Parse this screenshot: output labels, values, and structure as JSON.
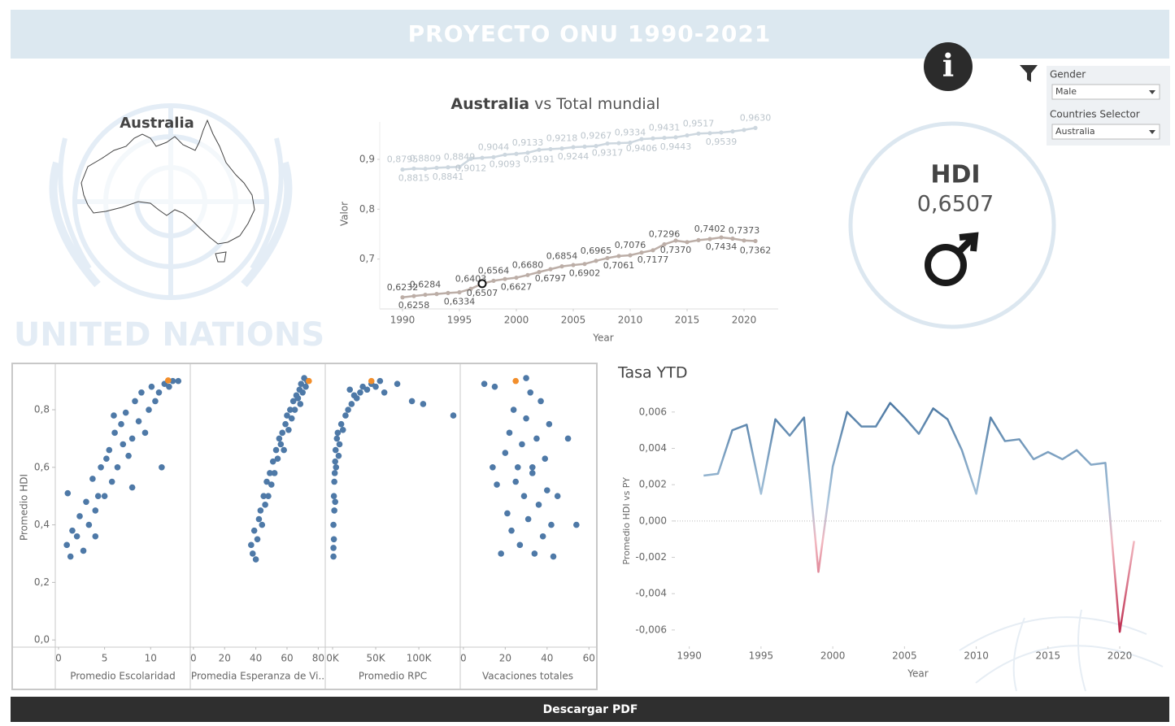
{
  "header": {
    "title": "PROYECTO ONU 1990-2021"
  },
  "map": {
    "label": "Australia",
    "watermark": "UNITED NATIONS"
  },
  "filters": [
    {
      "label": "Gender",
      "value": "Male"
    },
    {
      "label": "Countries Selector",
      "value": "Australia"
    }
  ],
  "kpi": {
    "label": "HDI",
    "value": "0,6507"
  },
  "footer": {
    "button": "Descargar PDF"
  },
  "chart_data": [
    {
      "type": "line",
      "title_bold": "Australia",
      "title": "vs Total mundial",
      "xlabel": "Year",
      "ylabel": "Valor",
      "x": [
        1990,
        1991,
        1992,
        1993,
        1994,
        1995,
        1996,
        1997,
        1998,
        1999,
        2000,
        2001,
        2002,
        2003,
        2004,
        2005,
        2006,
        2007,
        2008,
        2009,
        2010,
        2011,
        2012,
        2013,
        2014,
        2015,
        2016,
        2017,
        2018,
        2019,
        2020,
        2021
      ],
      "xlim": [
        1988,
        2023
      ],
      "xticks": [
        1990,
        1995,
        2000,
        2005,
        2010,
        2015,
        2020
      ],
      "ylim": [
        0.6,
        0.975
      ],
      "yticks": [
        {
          "value": 0.7,
          "label": "0,7"
        },
        {
          "value": 0.8,
          "label": "0,8"
        },
        {
          "value": 0.9,
          "label": "0,9"
        }
      ],
      "series": [
        {
          "color": "#cdd7df",
          "label_color": "#bcc5cc",
          "values": [
            0.8795,
            0.8815,
            0.8809,
            0.883,
            0.8841,
            0.8849,
            0.9012,
            0.903,
            0.9044,
            0.9093,
            0.911,
            0.9133,
            0.9191,
            0.9205,
            0.9218,
            0.9244,
            0.9255,
            0.9267,
            0.9317,
            0.9325,
            0.9334,
            0.9406,
            0.942,
            0.9431,
            0.9443,
            0.948,
            0.9517,
            0.9525,
            0.9539,
            0.956,
            0.959,
            0.963
          ],
          "value_labels": [
            "0,8795",
            "0,8815",
            "0,8809",
            null,
            "0,8841",
            "0,8849",
            "0,9012",
            null,
            "0,9044",
            "0,9093",
            null,
            "0,9133",
            "0,9191",
            null,
            "0,9218",
            "0,9244",
            null,
            "0,9267",
            "0,9317",
            null,
            "0,9334",
            "0,9406",
            null,
            "0,9431",
            "0,9443",
            null,
            "0,9517",
            null,
            "0,9539",
            null,
            null,
            "0,9630"
          ]
        },
        {
          "color": "#bcaea7",
          "label_color": "#555555",
          "highlight": 7,
          "values": [
            0.6232,
            0.6258,
            0.6284,
            0.63,
            0.632,
            0.6334,
            0.6403,
            0.6507,
            0.6564,
            0.66,
            0.6627,
            0.668,
            0.674,
            0.6797,
            0.6854,
            0.688,
            0.6902,
            0.6965,
            0.702,
            0.7061,
            0.7076,
            0.713,
            0.7177,
            0.7296,
            0.737,
            0.734,
            0.738,
            0.7402,
            0.7434,
            0.741,
            0.7373,
            0.7362
          ],
          "value_labels": [
            "0,6232",
            "0,6258",
            "0,6284",
            null,
            null,
            "0,6334",
            "0,6403",
            "0,6507",
            "0,6564",
            null,
            "0,6627",
            "0,6680",
            null,
            "0,6797",
            "0,6854",
            null,
            "0,6902",
            "0,6965",
            null,
            "0,7061",
            "0,7076",
            null,
            "0,7177",
            "0,7296",
            "0,7370",
            null,
            null,
            "0,7402",
            "0,7434",
            null,
            "0,7373",
            "0,7362"
          ]
        }
      ]
    },
    {
      "type": "scatter",
      "ylabel": "Promedio HDI",
      "ylim": [
        -0.025,
        0.947
      ],
      "yticks": [
        {
          "value": 0,
          "label": "0,0"
        },
        {
          "value": 0.2,
          "label": "0,2"
        },
        {
          "value": 0.4,
          "label": "0,4"
        },
        {
          "value": 0.6,
          "label": "0,6"
        },
        {
          "value": 0.8,
          "label": "0,8"
        }
      ],
      "panels": [
        {
          "xlabel": "Promedio Escolaridad",
          "xlim": [
            -0.35,
            14.3
          ],
          "xticks": [
            0,
            5,
            10
          ],
          "series": [
            {
              "color": "#4e79a7",
              "x": [
                0.9,
                1.3,
                1.5,
                2,
                2.3,
                2.7,
                3,
                3.3,
                3.7,
                4,
                4.3,
                4.6,
                5,
                5.2,
                5.5,
                5.8,
                6.1,
                6.4,
                6.8,
                7,
                7.3,
                7.6,
                8,
                8.3,
                8.7,
                9,
                9.4,
                9.8,
                10.1,
                10.5,
                10.9,
                11.2,
                11.5,
                12,
                12.4,
                13,
                1,
                4,
                6,
                8
              ],
              "values": [
                0.33,
                0.29,
                0.38,
                0.36,
                0.43,
                0.31,
                0.48,
                0.4,
                0.56,
                0.45,
                0.5,
                0.6,
                0.5,
                0.63,
                0.66,
                0.55,
                0.72,
                0.6,
                0.75,
                0.68,
                0.79,
                0.64,
                0.7,
                0.83,
                0.76,
                0.86,
                0.72,
                0.8,
                0.88,
                0.83,
                0.86,
                0.6,
                0.89,
                0.88,
                0.9,
                0.9,
                0.51,
                0.36,
                0.78,
                0.53
              ]
            },
            {
              "color": "#f28e2b",
              "x": [
                11.9
              ],
              "values": [
                0.902
              ]
            }
          ]
        },
        {
          "xlabel": "Promedia Esperanza de Vi..",
          "xlim": [
            -2,
            84.5
          ],
          "xticks": [
            0,
            20,
            40,
            60,
            80
          ],
          "series": [
            {
              "color": "#4e79a7",
              "x": [
                37,
                38,
                40,
                39,
                41,
                42,
                43,
                44,
                45,
                46,
                47,
                48,
                49,
                50,
                51,
                52,
                53,
                54,
                55,
                56,
                57,
                58,
                59,
                60,
                61,
                62,
                63,
                64,
                65,
                66,
                67,
                68,
                68.5,
                69,
                70,
                71,
                72,
                73
              ],
              "values": [
                0.33,
                0.3,
                0.28,
                0.38,
                0.35,
                0.42,
                0.45,
                0.4,
                0.5,
                0.47,
                0.55,
                0.5,
                0.58,
                0.54,
                0.62,
                0.58,
                0.66,
                0.63,
                0.7,
                0.68,
                0.72,
                0.66,
                0.75,
                0.78,
                0.73,
                0.8,
                0.77,
                0.83,
                0.8,
                0.85,
                0.84,
                0.87,
                0.82,
                0.89,
                0.86,
                0.91,
                0.88,
                0.9
              ]
            },
            {
              "color": "#f28e2b",
              "x": [
                74
              ],
              "values": [
                0.9
              ]
            }
          ]
        },
        {
          "xlabel": "Promedio RPC",
          "xlim": [
            -8500,
            148000
          ],
          "xticks": [
            {
              "value": 0,
              "label": "0K"
            },
            {
              "value": 50000,
              "label": "50K"
            },
            {
              "value": 100000,
              "label": "100K"
            }
          ],
          "series": [
            {
              "color": "#4e79a7",
              "x": [
                1000,
                1000,
                1500,
                1000,
                2000,
                1500,
                2000,
                2500,
                3000,
                3500,
                4000,
                5000,
                6000,
                8000,
                10000,
                12000,
                15000,
                18000,
                22000,
                25000,
                28000,
                32000,
                35000,
                40000,
                45000,
                50000,
                55000,
                60000,
                75000,
                92000,
                105000,
                140000,
                3000,
                7000,
                20000
              ],
              "values": [
                0.29,
                0.32,
                0.35,
                0.4,
                0.45,
                0.5,
                0.55,
                0.58,
                0.62,
                0.66,
                0.6,
                0.7,
                0.72,
                0.68,
                0.75,
                0.73,
                0.78,
                0.8,
                0.82,
                0.85,
                0.84,
                0.86,
                0.88,
                0.87,
                0.89,
                0.88,
                0.9,
                0.86,
                0.89,
                0.83,
                0.82,
                0.78,
                0.48,
                0.64,
                0.87
              ]
            },
            {
              "color": "#f28e2b",
              "x": [
                45000
              ],
              "values": [
                0.9
              ]
            }
          ]
        },
        {
          "xlabel": "Vacaciones totales",
          "xlim": [
            -1.5,
            63
          ],
          "xticks": [
            0,
            20,
            40,
            60
          ],
          "series": [
            {
              "color": "#4e79a7",
              "x": [
                10,
                15,
                14,
                16,
                18,
                20,
                21,
                22,
                23,
                24,
                25,
                26,
                27,
                28,
                29,
                30,
                31,
                32,
                33,
                34,
                35,
                36,
                37,
                38,
                39,
                40,
                41,
                42,
                43,
                45,
                50,
                54,
                30,
                33
              ],
              "values": [
                0.89,
                0.88,
                0.6,
                0.54,
                0.3,
                0.65,
                0.44,
                0.72,
                0.38,
                0.8,
                0.55,
                0.6,
                0.33,
                0.68,
                0.5,
                0.77,
                0.42,
                0.86,
                0.58,
                0.3,
                0.7,
                0.47,
                0.83,
                0.36,
                0.63,
                0.52,
                0.75,
                0.4,
                0.29,
                0.5,
                0.7,
                0.4,
                0.91,
                0.6
              ]
            },
            {
              "color": "#f28e2b",
              "x": [
                25
              ],
              "values": [
                0.9
              ]
            }
          ]
        }
      ]
    },
    {
      "type": "line",
      "title": "Tasa YTD",
      "xlabel": "Year",
      "ylabel": "Promedio HDI vs PY",
      "x": [
        1991,
        1992,
        1993,
        1994,
        1995,
        1996,
        1997,
        1998,
        1999,
        2000,
        2001,
        2002,
        2003,
        2004,
        2005,
        2006,
        2007,
        2008,
        2009,
        2010,
        2011,
        2012,
        2013,
        2014,
        2015,
        2016,
        2017,
        2018,
        2019,
        2020,
        2021
      ],
      "values": [
        0.0025,
        0.0026,
        0.005,
        0.0053,
        0.0015,
        0.0056,
        0.0047,
        0.0057,
        -0.0028,
        0.003,
        0.006,
        0.0052,
        0.0052,
        0.0065,
        0.0057,
        0.0048,
        0.0062,
        0.0056,
        0.0039,
        0.0015,
        0.0057,
        0.0044,
        0.0045,
        0.0034,
        0.0038,
        0.0034,
        0.0039,
        0.0031,
        0.0032,
        -0.0061,
        -0.0011
      ],
      "xlim": [
        1989,
        2023
      ],
      "xticks": [
        1990,
        1995,
        2000,
        2005,
        2010,
        2015,
        2020
      ],
      "ylim": [
        -0.0069,
        0.0072
      ],
      "yticks": [
        {
          "value": -0.006,
          "label": "-0,006"
        },
        {
          "value": -0.004,
          "label": "-0,004"
        },
        {
          "value": -0.002,
          "label": "-0,002"
        },
        {
          "value": 0,
          "label": "0,000"
        },
        {
          "value": 0.002,
          "label": "0,002"
        },
        {
          "value": 0.004,
          "label": "0,004"
        },
        {
          "value": 0.006,
          "label": "0,006"
        }
      ],
      "colors": {
        "positive": "#3f6d9a",
        "near_positive": "#a9c6dd",
        "near_negative": "#f2b8c0",
        "negative": "#b5163d"
      }
    }
  ]
}
